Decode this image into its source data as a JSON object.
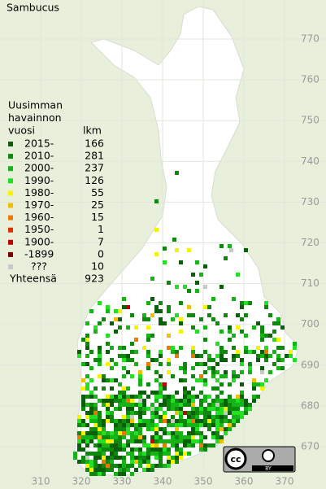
{
  "title": "Sambucus",
  "legend": {
    "heading": [
      "Uusimman",
      "havainnon",
      "vuosi"
    ],
    "count_heading": "lkm",
    "items": [
      {
        "label": "2015-",
        "count": "166",
        "color": "#0b5f0b"
      },
      {
        "label": "2010-",
        "count": "281",
        "color": "#0d8a0d"
      },
      {
        "label": "2000-",
        "count": "237",
        "color": "#17b417"
      },
      {
        "label": "1990-",
        "count": "126",
        "color": "#22e022"
      },
      {
        "label": "1980-",
        "count": "55",
        "color": "#f4f400"
      },
      {
        "label": "1970-",
        "count": "25",
        "color": "#f0c000"
      },
      {
        "label": "1960-",
        "count": "15",
        "color": "#f07800"
      },
      {
        "label": "1950-",
        "count": "1",
        "color": "#e03000"
      },
      {
        "label": "1900-",
        "count": "7",
        "color": "#c00000"
      },
      {
        "label": "-1899",
        "count": "0",
        "color": "#7a0000"
      },
      {
        "label": "???",
        "count": "10",
        "color": "#c8c8c8"
      }
    ],
    "total_label": "Yhteensä",
    "total": "923"
  },
  "north_labels": [
    "770",
    "760",
    "750",
    "740",
    "730",
    "720",
    "710",
    "700",
    "690",
    "680",
    "670"
  ],
  "east_labels": [
    "310",
    "320",
    "330",
    "340",
    "350",
    "360",
    "370"
  ],
  "badge": {
    "cc": "cc",
    "by": "BY"
  }
}
